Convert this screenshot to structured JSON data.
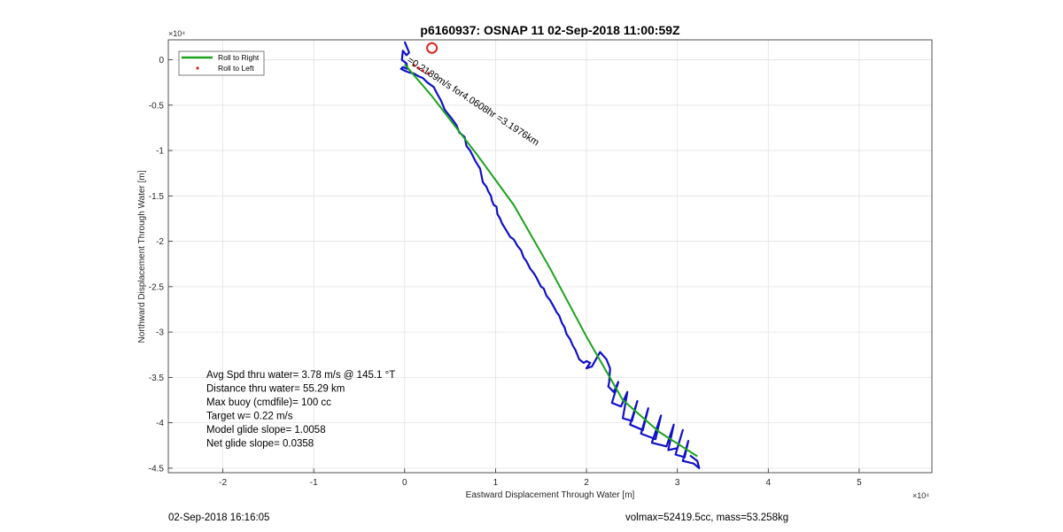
{
  "chart_data": {
    "type": "line",
    "title": "p6160937: OSNAP 11 02-Sep-2018 11:00:59Z",
    "xlabel": "Eastward Displacement Through Water [m]",
    "ylabel": "Northward Displacement Through Water [m]",
    "x_exponent_label": "×10⁴",
    "y_exponent_label": "×10⁴",
    "xlim": [
      -2.6,
      5.8
    ],
    "ylim": [
      -4.55,
      0.22
    ],
    "xticks": [
      -2,
      -1,
      0,
      1,
      2,
      3,
      4,
      5
    ],
    "xtick_labels": [
      "-2",
      "-1",
      "0",
      "1",
      "2",
      "3",
      "4",
      "5"
    ],
    "yticks": [
      0,
      -0.5,
      -1,
      -1.5,
      -2,
      -2.5,
      -3,
      -3.5,
      -4,
      -4.5
    ],
    "ytick_labels": [
      "0",
      "-0.5",
      "-1",
      "-1.5",
      "-2",
      "-2.5",
      "-3",
      "-3.5",
      "-4",
      "-4.5"
    ],
    "grid": true,
    "legend_position": "top-left",
    "series": [
      {
        "name": "Roll to Right",
        "color": "#1aa31a",
        "style": "line",
        "x": [
          0.0,
          0.3,
          0.8,
          1.2,
          1.6,
          2.0,
          2.4,
          2.8,
          3.22
        ],
        "y": [
          -0.05,
          -0.4,
          -1.05,
          -1.6,
          -2.3,
          -3.05,
          -3.75,
          -4.1,
          -4.37
        ]
      },
      {
        "name": "Roll to Left",
        "color": "#e02020",
        "style": "points",
        "x": [
          0.1,
          0.15,
          0.2,
          0.26
        ],
        "y": [
          -0.06,
          -0.09,
          -0.12,
          -0.15
        ]
      }
    ],
    "track": {
      "color": "#1010c8",
      "x": [
        0.0,
        0.02,
        0.05,
        0.02,
        -0.02,
        -0.03,
        0.02,
        0.03,
        -0.02,
        -0.04,
        0.0,
        0.05,
        0.1,
        0.15,
        0.2,
        0.25,
        0.32,
        0.36,
        0.4,
        0.44,
        0.48,
        0.52,
        0.57,
        0.6,
        0.66,
        0.68,
        0.72,
        0.76,
        0.78,
        0.83,
        0.84,
        0.86,
        0.9,
        0.92,
        0.95,
        0.96,
        0.98,
        1.01,
        1.02,
        1.05,
        1.07,
        1.1,
        1.13,
        1.16,
        1.2,
        1.24,
        1.28,
        1.31,
        1.34,
        1.38,
        1.42,
        1.45,
        1.5,
        1.53,
        1.56,
        1.6,
        1.64,
        1.67,
        1.7,
        1.73,
        1.76,
        1.78,
        1.82,
        1.85,
        1.88,
        1.92,
        1.97,
        2.0,
        2.04,
        2.0,
        2.06,
        2.15,
        2.22,
        2.26,
        2.25,
        2.24,
        2.3,
        2.35,
        2.28,
        2.38,
        2.45,
        2.4,
        2.5,
        2.56,
        2.48,
        2.62,
        2.68,
        2.6,
        2.76,
        2.82,
        2.72,
        2.88,
        2.96,
        2.9,
        3.0,
        3.06,
        2.98,
        3.08,
        3.12,
        3.06,
        3.18,
        3.24,
        3.22,
        3.14
      ],
      "y": [
        0.2,
        0.15,
        0.08,
        0.05,
        0.1,
        0.0,
        -0.04,
        -0.1,
        -0.08,
        -0.1,
        -0.12,
        -0.14,
        -0.15,
        -0.18,
        -0.2,
        -0.25,
        -0.3,
        -0.38,
        -0.45,
        -0.55,
        -0.6,
        -0.65,
        -0.72,
        -0.8,
        -0.85,
        -0.95,
        -1.0,
        -1.08,
        -1.12,
        -1.2,
        -1.25,
        -1.35,
        -1.4,
        -1.45,
        -1.5,
        -1.55,
        -1.6,
        -1.62,
        -1.7,
        -1.75,
        -1.8,
        -1.85,
        -1.9,
        -1.95,
        -1.98,
        -2.05,
        -2.1,
        -2.18,
        -2.22,
        -2.3,
        -2.35,
        -2.4,
        -2.5,
        -2.52,
        -2.6,
        -2.65,
        -2.72,
        -2.78,
        -2.82,
        -2.9,
        -2.95,
        -3.02,
        -3.08,
        -3.15,
        -3.2,
        -3.3,
        -3.34,
        -3.32,
        -3.34,
        -3.4,
        -3.38,
        -3.22,
        -3.3,
        -3.4,
        -3.55,
        -3.6,
        -3.66,
        -3.55,
        -3.78,
        -3.82,
        -3.66,
        -3.95,
        -3.98,
        -3.76,
        -4.02,
        -4.08,
        -3.84,
        -4.12,
        -4.18,
        -3.92,
        -4.22,
        -4.26,
        -4.02,
        -4.3,
        -4.28,
        -4.08,
        -4.35,
        -4.38,
        -4.2,
        -4.42,
        -4.45,
        -4.5,
        -4.42,
        -4.36
      ]
    },
    "start_marker": {
      "x": 0.3,
      "y": 0.13,
      "color": "#e02020"
    },
    "annotation": {
      "text": "=0.2189m/s for4.0608hr =3.1976km",
      "x": 0.02,
      "y": -0.02,
      "angle_deg": 33
    },
    "stats": [
      "Avg Spd thru water=  3.78 m/s @ 145.1 °T",
      "Distance thru water= 55.29 km",
      "Max buoy (cmdfile)= 100 cc",
      "Target w= 0.22 m/s",
      "Model glide slope= 1.0058",
      "Net glide slope= 0.0358"
    ]
  },
  "footer": {
    "left": "02-Sep-2018 16:16:05",
    "right": "volmax=52419.5cc, mass=53.258kg"
  }
}
